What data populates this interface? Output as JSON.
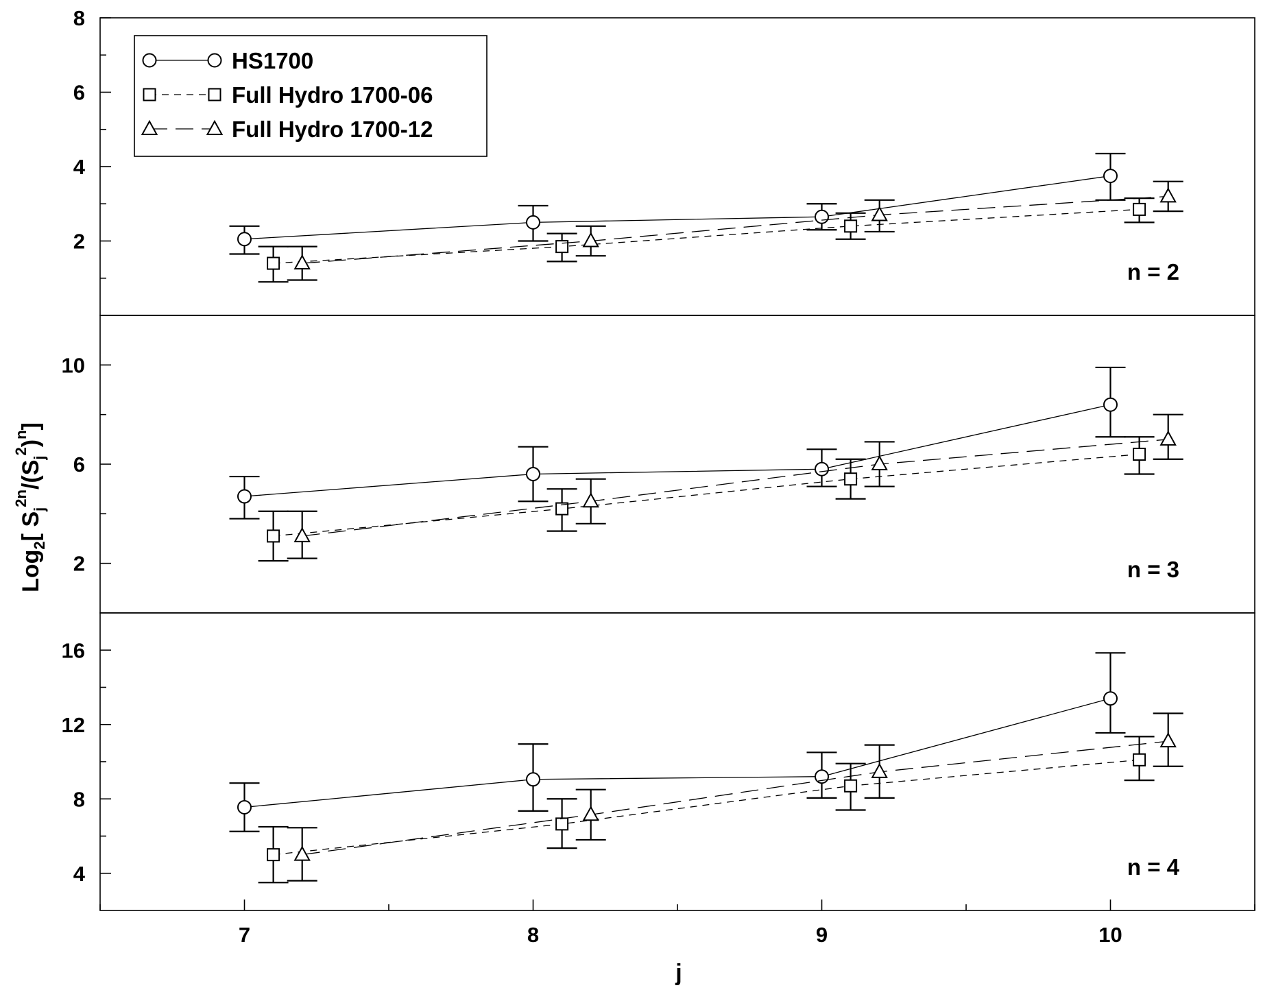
{
  "chart_data": {
    "type": "scatter",
    "xlabel": "j",
    "ylabel": "Log2[ Sj^2n/(Sj^2)^n ]",
    "ylabel_parts": {
      "base": "Log",
      "sub": "2",
      "s1": "S",
      "j1": "j",
      "sup1": "2n",
      "slash": "/(S",
      "j2": "j",
      "sup2": "2",
      "close": ")",
      "supn": "n",
      "bracket": "]"
    },
    "x_ticks": [
      7,
      8,
      9,
      10
    ],
    "xlim": [
      6.5,
      10.5
    ],
    "legend": {
      "position": "top-left",
      "entries": [
        {
          "label": "HS1700",
          "marker": "circle",
          "line": "solid"
        },
        {
          "label": "Full Hydro 1700-06",
          "marker": "square",
          "line": "dashed"
        },
        {
          "label": "Full Hydro 1700-12",
          "marker": "triangle",
          "line": "long-dashed"
        }
      ]
    },
    "panels": [
      {
        "annotation": "n = 2",
        "ylim": [
          0,
          8
        ],
        "y_ticks": [
          2,
          4,
          6,
          8
        ],
        "series": [
          {
            "name": "HS1700",
            "x": [
              7,
              8,
              9,
              10
            ],
            "y": [
              2.05,
              2.5,
              2.65,
              3.75
            ],
            "err_low": [
              1.65,
              2.0,
              2.3,
              3.1
            ],
            "err_high": [
              2.4,
              2.95,
              3.0,
              4.35
            ]
          },
          {
            "name": "Full Hydro 1700-06",
            "x": [
              7.1,
              8.1,
              9.1,
              10.1
            ],
            "y": [
              1.4,
              1.85,
              2.4,
              2.85
            ],
            "err_low": [
              0.9,
              1.45,
              2.05,
              2.5
            ],
            "err_high": [
              1.85,
              2.2,
              2.75,
              3.15
            ]
          },
          {
            "name": "Full Hydro 1700-12",
            "x": [
              7.2,
              8.2,
              9.2,
              10.2
            ],
            "y": [
              1.4,
              2.0,
              2.7,
              3.2
            ],
            "err_low": [
              0.95,
              1.6,
              2.25,
              2.8
            ],
            "err_high": [
              1.85,
              2.4,
              3.1,
              3.6
            ]
          }
        ]
      },
      {
        "annotation": "n = 3",
        "ylim": [
          0,
          12
        ],
        "y_ticks": [
          2,
          6,
          10
        ],
        "series": [
          {
            "name": "HS1700",
            "x": [
              7,
              8,
              9,
              10
            ],
            "y": [
              4.7,
              5.6,
              5.8,
              8.4
            ],
            "err_low": [
              3.8,
              4.5,
              5.1,
              7.1
            ],
            "err_high": [
              5.5,
              6.7,
              6.6,
              9.9
            ]
          },
          {
            "name": "Full Hydro 1700-06",
            "x": [
              7.1,
              8.1,
              9.1,
              10.1
            ],
            "y": [
              3.1,
              4.2,
              5.4,
              6.4
            ],
            "err_low": [
              2.1,
              3.3,
              4.6,
              5.6
            ],
            "err_high": [
              4.1,
              5.0,
              6.2,
              7.1
            ]
          },
          {
            "name": "Full Hydro 1700-12",
            "x": [
              7.2,
              8.2,
              9.2,
              10.2
            ],
            "y": [
              3.1,
              4.5,
              6.0,
              7.0
            ],
            "err_low": [
              2.2,
              3.6,
              5.1,
              6.2
            ],
            "err_high": [
              4.1,
              5.4,
              6.9,
              8.0
            ]
          }
        ]
      },
      {
        "annotation": "n = 4",
        "ylim": [
          2,
          18
        ],
        "y_ticks": [
          4,
          8,
          12,
          16
        ],
        "series": [
          {
            "name": "HS1700",
            "x": [
              7,
              8,
              9,
              10
            ],
            "y": [
              7.55,
              9.05,
              9.2,
              13.4
            ],
            "err_low": [
              6.25,
              7.35,
              8.05,
              11.55
            ],
            "err_high": [
              8.85,
              10.95,
              10.5,
              15.85
            ]
          },
          {
            "name": "Full Hydro 1700-06",
            "x": [
              7.1,
              8.1,
              9.1,
              10.1
            ],
            "y": [
              5.0,
              6.65,
              8.7,
              10.1
            ],
            "err_low": [
              3.5,
              5.35,
              7.4,
              9.0
            ],
            "err_high": [
              6.5,
              8.0,
              9.9,
              11.35
            ]
          },
          {
            "name": "Full Hydro 1700-12",
            "x": [
              7.2,
              8.2,
              9.2,
              10.2
            ],
            "y": [
              5.0,
              7.15,
              9.45,
              11.1
            ],
            "err_low": [
              3.6,
              5.8,
              8.05,
              9.75
            ],
            "err_high": [
              6.45,
              8.5,
              10.9,
              12.6
            ]
          }
        ]
      }
    ]
  }
}
